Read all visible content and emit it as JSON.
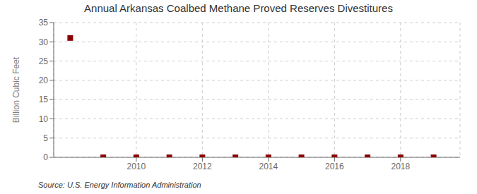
{
  "chart_data": {
    "type": "scatter",
    "title": "Annual Arkansas Coalbed Methane Proved Reserves Divestitures",
    "y_label": "Billion Cubic Feet",
    "annotations": [
      "Source: U.S. Energy Information Administration"
    ],
    "x": [
      2008,
      2009,
      2010,
      2011,
      2012,
      2013,
      2014,
      2015,
      2016,
      2017,
      2018,
      2019
    ],
    "values": [
      31.0,
      0.0,
      0.0,
      0.0,
      0.0,
      0.0,
      0.0,
      0.0,
      0.0,
      0.0,
      0.0,
      0.0
    ],
    "color": "#8B0000",
    "marker": "square",
    "xlim": [
      2007.5,
      2019.8
    ],
    "ylim": [
      0,
      35
    ],
    "xticks": [
      2010,
      2012,
      2014,
      2016,
      2018
    ],
    "yticks": [
      0,
      5,
      10,
      15,
      20,
      25,
      30,
      35
    ],
    "grid": true
  }
}
